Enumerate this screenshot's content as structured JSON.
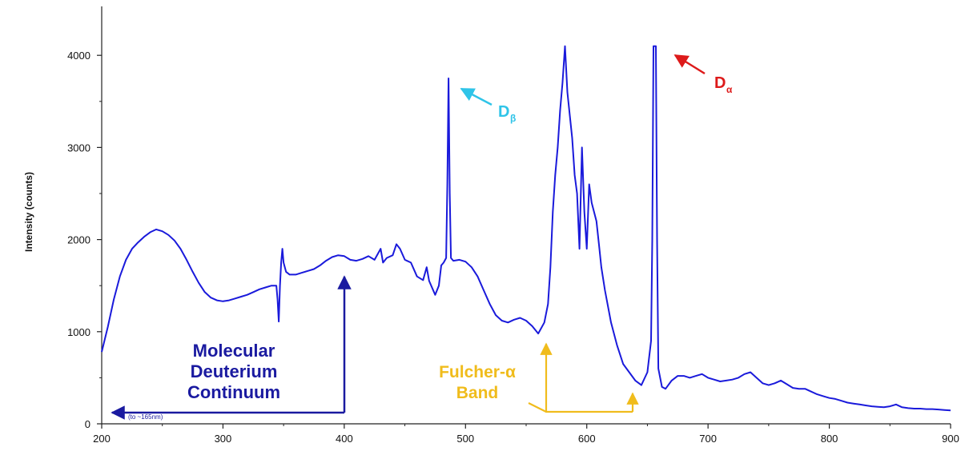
{
  "chart_data": {
    "type": "line",
    "title": "",
    "xlabel": "",
    "ylabel": "Intensity (counts)",
    "xlim": [
      200,
      900
    ],
    "ylim": [
      0,
      4300
    ],
    "x_ticks": [
      200,
      300,
      400,
      500,
      600,
      700,
      800,
      900
    ],
    "y_ticks": [
      0,
      1000,
      2000,
      3000,
      4000
    ],
    "grid": false,
    "line_color": "#1a1adb",
    "series": [
      {
        "name": "",
        "points": [
          [
            200,
            780
          ],
          [
            205,
            1050
          ],
          [
            210,
            1350
          ],
          [
            215,
            1600
          ],
          [
            220,
            1780
          ],
          [
            225,
            1900
          ],
          [
            230,
            1970
          ],
          [
            235,
            2030
          ],
          [
            240,
            2080
          ],
          [
            245,
            2110
          ],
          [
            250,
            2090
          ],
          [
            255,
            2050
          ],
          [
            260,
            1990
          ],
          [
            265,
            1900
          ],
          [
            270,
            1780
          ],
          [
            275,
            1650
          ],
          [
            280,
            1530
          ],
          [
            285,
            1430
          ],
          [
            290,
            1370
          ],
          [
            295,
            1340
          ],
          [
            300,
            1330
          ],
          [
            305,
            1340
          ],
          [
            310,
            1360
          ],
          [
            315,
            1380
          ],
          [
            320,
            1400
          ],
          [
            325,
            1430
          ],
          [
            330,
            1460
          ],
          [
            335,
            1480
          ],
          [
            340,
            1500
          ],
          [
            344,
            1500
          ],
          [
            345,
            1350
          ],
          [
            346,
            1110
          ],
          [
            347,
            1500
          ],
          [
            348,
            1750
          ],
          [
            349,
            1900
          ],
          [
            350,
            1750
          ],
          [
            352,
            1650
          ],
          [
            355,
            1620
          ],
          [
            360,
            1620
          ],
          [
            365,
            1640
          ],
          [
            370,
            1660
          ],
          [
            375,
            1680
          ],
          [
            380,
            1720
          ],
          [
            385,
            1770
          ],
          [
            390,
            1810
          ],
          [
            395,
            1830
          ],
          [
            400,
            1820
          ],
          [
            405,
            1780
          ],
          [
            410,
            1770
          ],
          [
            415,
            1790
          ],
          [
            420,
            1820
          ],
          [
            425,
            1780
          ],
          [
            430,
            1900
          ],
          [
            432,
            1750
          ],
          [
            435,
            1800
          ],
          [
            440,
            1830
          ],
          [
            443,
            1950
          ],
          [
            446,
            1900
          ],
          [
            450,
            1780
          ],
          [
            455,
            1750
          ],
          [
            460,
            1600
          ],
          [
            465,
            1560
          ],
          [
            468,
            1700
          ],
          [
            470,
            1550
          ],
          [
            475,
            1400
          ],
          [
            478,
            1500
          ],
          [
            480,
            1720
          ],
          [
            482,
            1750
          ],
          [
            484,
            1800
          ],
          [
            485,
            2600
          ],
          [
            486,
            3750
          ],
          [
            487,
            2500
          ],
          [
            488,
            1800
          ],
          [
            490,
            1770
          ],
          [
            495,
            1780
          ],
          [
            500,
            1760
          ],
          [
            505,
            1700
          ],
          [
            510,
            1600
          ],
          [
            515,
            1450
          ],
          [
            520,
            1300
          ],
          [
            525,
            1180
          ],
          [
            530,
            1120
          ],
          [
            535,
            1100
          ],
          [
            540,
            1130
          ],
          [
            545,
            1150
          ],
          [
            550,
            1120
          ],
          [
            555,
            1060
          ],
          [
            560,
            980
          ],
          [
            565,
            1100
          ],
          [
            568,
            1300
          ],
          [
            570,
            1700
          ],
          [
            572,
            2300
          ],
          [
            574,
            2700
          ],
          [
            576,
            3000
          ],
          [
            578,
            3400
          ],
          [
            580,
            3700
          ],
          [
            582,
            4100
          ],
          [
            584,
            3600
          ],
          [
            586,
            3350
          ],
          [
            588,
            3100
          ],
          [
            590,
            2700
          ],
          [
            592,
            2500
          ],
          [
            594,
            1900
          ],
          [
            596,
            3000
          ],
          [
            598,
            2300
          ],
          [
            600,
            1900
          ],
          [
            602,
            2600
          ],
          [
            604,
            2400
          ],
          [
            606,
            2300
          ],
          [
            608,
            2200
          ],
          [
            610,
            1950
          ],
          [
            612,
            1700
          ],
          [
            615,
            1450
          ],
          [
            620,
            1100
          ],
          [
            625,
            850
          ],
          [
            630,
            650
          ],
          [
            635,
            560
          ],
          [
            640,
            470
          ],
          [
            645,
            420
          ],
          [
            650,
            560
          ],
          [
            653,
            900
          ],
          [
            654,
            2000
          ],
          [
            655,
            4100
          ],
          [
            657,
            4100
          ],
          [
            658,
            2000
          ],
          [
            659,
            600
          ],
          [
            662,
            400
          ],
          [
            665,
            380
          ],
          [
            670,
            470
          ],
          [
            675,
            520
          ],
          [
            680,
            520
          ],
          [
            685,
            500
          ],
          [
            690,
            520
          ],
          [
            695,
            540
          ],
          [
            700,
            500
          ],
          [
            705,
            480
          ],
          [
            710,
            460
          ],
          [
            715,
            470
          ],
          [
            720,
            480
          ],
          [
            725,
            500
          ],
          [
            730,
            540
          ],
          [
            735,
            560
          ],
          [
            740,
            500
          ],
          [
            745,
            440
          ],
          [
            750,
            420
          ],
          [
            755,
            440
          ],
          [
            760,
            470
          ],
          [
            765,
            430
          ],
          [
            770,
            390
          ],
          [
            775,
            380
          ],
          [
            780,
            380
          ],
          [
            785,
            350
          ],
          [
            790,
            320
          ],
          [
            795,
            300
          ],
          [
            800,
            280
          ],
          [
            805,
            270
          ],
          [
            810,
            250
          ],
          [
            815,
            230
          ],
          [
            820,
            220
          ],
          [
            825,
            210
          ],
          [
            830,
            200
          ],
          [
            835,
            190
          ],
          [
            840,
            185
          ],
          [
            845,
            180
          ],
          [
            850,
            190
          ],
          [
            855,
            210
          ],
          [
            860,
            180
          ],
          [
            865,
            170
          ],
          [
            870,
            165
          ],
          [
            875,
            165
          ],
          [
            880,
            160
          ],
          [
            885,
            160
          ],
          [
            890,
            155
          ],
          [
            895,
            150
          ],
          [
            900,
            145
          ]
        ]
      }
    ],
    "annotations": [
      {
        "id": "d-beta",
        "label": "D",
        "subscript": "β",
        "color": "#2fc4e8"
      },
      {
        "id": "d-alpha",
        "label": "D",
        "subscript": "α",
        "color": "#dd1a1a"
      },
      {
        "id": "molecular",
        "lines": [
          "Molecular",
          "Deuterium",
          "Continuum"
        ],
        "color": "#1a1aa0",
        "range_note": "(to ~165nm)"
      },
      {
        "id": "fulcher",
        "lines": [
          "Fulcher-α",
          "Band"
        ],
        "color": "#f0bc1c"
      }
    ]
  }
}
